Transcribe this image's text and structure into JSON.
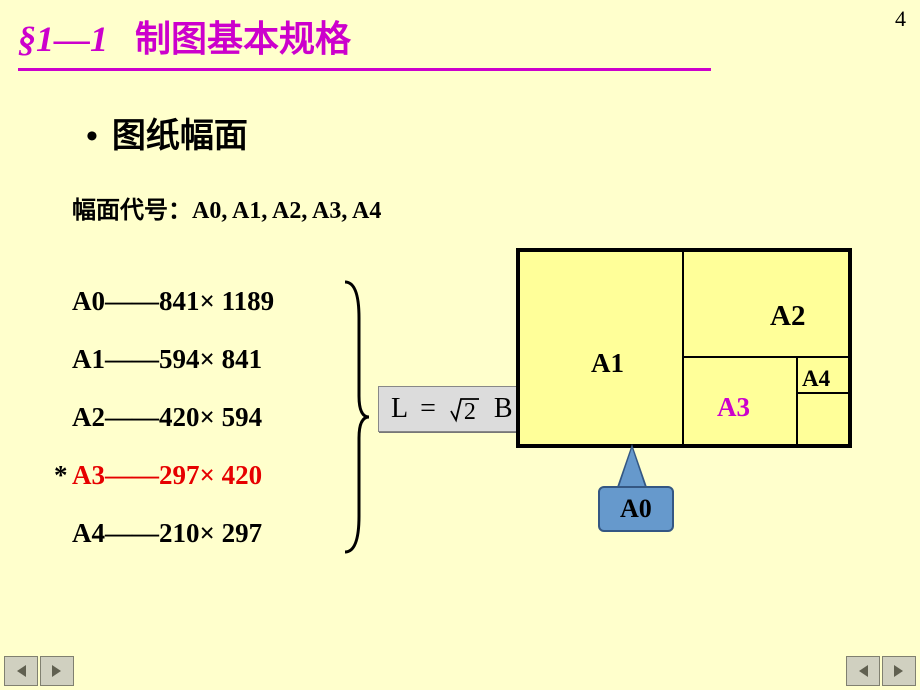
{
  "page": {
    "number": "4",
    "title_section": "§1—1",
    "title_text": "制图基本规格"
  },
  "heading": {
    "bullet": "•",
    "text": "图纸幅面"
  },
  "codes_line": {
    "label": "幅面代号：",
    "values": "A0, A1, A2, A3, A4"
  },
  "sizes": [
    {
      "code": "A0",
      "dims": "841× 1189",
      "highlight": false,
      "star": false
    },
    {
      "code": "A1",
      "dims": "594× 841",
      "highlight": false,
      "star": false
    },
    {
      "code": "A2",
      "dims": "420× 594",
      "highlight": false,
      "star": false
    },
    {
      "code": "A3",
      "dims": "297× 420",
      "highlight": true,
      "star": true
    },
    {
      "code": "A4",
      "dims": "210× 297",
      "highlight": false,
      "star": false
    }
  ],
  "formula": {
    "lhs": "L",
    "eq": "=",
    "radicand": "2",
    "tail": "B"
  },
  "diagram": {
    "labels": {
      "a0": "A0",
      "a1": "A1",
      "a2": "A2",
      "a3": "A3",
      "a4": "A4"
    },
    "colors": {
      "fill": "#ffff99",
      "border": "#000000",
      "a3_label": "#cc00cc",
      "a0_box_fill": "#6699cc",
      "a0_box_border": "#345783"
    }
  },
  "colors": {
    "background": "#ffffcc",
    "title": "#cc00cc",
    "highlight_row": "#e60000",
    "text": "#000000",
    "formula_bg": "#dcdcdc"
  },
  "typography": {
    "title_fontsize": 36,
    "heading_fontsize": 34,
    "body_fontsize": 24,
    "list_fontsize": 27,
    "list_lineheight": 58,
    "formula_fontsize": 28
  }
}
